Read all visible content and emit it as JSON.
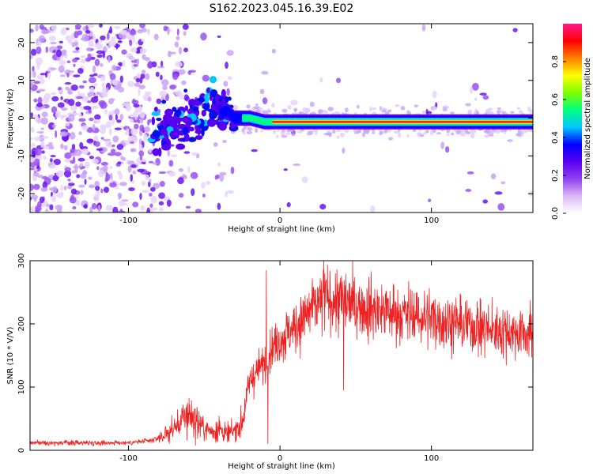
{
  "title": "S162.2023.045.16.39.E02",
  "chart_data": [
    {
      "type": "heatmap",
      "xlabel": "Height of straight line (km)",
      "ylabel": "Frequency (Hz)",
      "xlim": [
        -165,
        167
      ],
      "ylim": [
        -25,
        25
      ],
      "xticks": [
        -100,
        0,
        100
      ],
      "yticks": [
        -20,
        -10,
        0,
        10,
        20
      ],
      "colorbar": {
        "label": "Normalized spectral amplitude",
        "range": [
          0,
          1
        ],
        "ticks": [
          "0.0",
          "0.2",
          "0.4",
          "0.6",
          "0.8"
        ],
        "colormap": [
          "#ffffff",
          "#d9b8f5",
          "#9040f0",
          "#5a00f0",
          "#0000ff",
          "#00c8ff",
          "#00ff80",
          "#7fff00",
          "#ffff00",
          "#ff8000",
          "#ff0000",
          "#ff1a8c"
        ]
      },
      "ridge": [
        {
          "x": -80,
          "f": -4
        },
        {
          "x": -70,
          "f": -2
        },
        {
          "x": -60,
          "f": -1
        },
        {
          "x": -50,
          "f": 2
        },
        {
          "x": -45,
          "f": 4
        },
        {
          "x": -40,
          "f": 1
        },
        {
          "x": -35,
          "f": 2
        },
        {
          "x": -30,
          "f": 0
        },
        {
          "x": -20,
          "f": 0
        },
        {
          "x": -10,
          "f": -1
        },
        {
          "x": 0,
          "f": -1
        },
        {
          "x": 20,
          "f": -1
        },
        {
          "x": 100,
          "f": -1
        },
        {
          "x": 167,
          "f": -1
        }
      ]
    },
    {
      "type": "line",
      "xlabel": "Height of straight line (km)",
      "ylabel": "SNR (10 * V/V)",
      "xlim": [
        -165,
        167
      ],
      "ylim": [
        0,
        300
      ],
      "xticks": [
        -100,
        0,
        100
      ],
      "yticks": [
        0,
        100,
        200,
        300
      ],
      "color": "#ee2222",
      "envelope": [
        {
          "x": -165,
          "y": 12
        },
        {
          "x": -100,
          "y": 12
        },
        {
          "x": -85,
          "y": 15
        },
        {
          "x": -75,
          "y": 25
        },
        {
          "x": -65,
          "y": 45
        },
        {
          "x": -60,
          "y": 60
        },
        {
          "x": -55,
          "y": 45
        },
        {
          "x": -50,
          "y": 35
        },
        {
          "x": -45,
          "y": 30
        },
        {
          "x": -40,
          "y": 35
        },
        {
          "x": -35,
          "y": 25
        },
        {
          "x": -30,
          "y": 30
        },
        {
          "x": -25,
          "y": 45
        },
        {
          "x": -20,
          "y": 110
        },
        {
          "x": -15,
          "y": 125
        },
        {
          "x": -10,
          "y": 140
        },
        {
          "x": -5,
          "y": 165
        },
        {
          "x": 0,
          "y": 175
        },
        {
          "x": 10,
          "y": 195
        },
        {
          "x": 20,
          "y": 220
        },
        {
          "x": 30,
          "y": 240
        },
        {
          "x": 40,
          "y": 235
        },
        {
          "x": 50,
          "y": 230
        },
        {
          "x": 60,
          "y": 225
        },
        {
          "x": 80,
          "y": 215
        },
        {
          "x": 100,
          "y": 210
        },
        {
          "x": 120,
          "y": 200
        },
        {
          "x": 140,
          "y": 190
        },
        {
          "x": 167,
          "y": 185
        }
      ],
      "spikes": [
        {
          "x": -9,
          "y": 285
        },
        {
          "x": -8,
          "y": 10
        },
        {
          "x": 29,
          "y": 300
        },
        {
          "x": 42,
          "y": 95
        }
      ]
    }
  ]
}
